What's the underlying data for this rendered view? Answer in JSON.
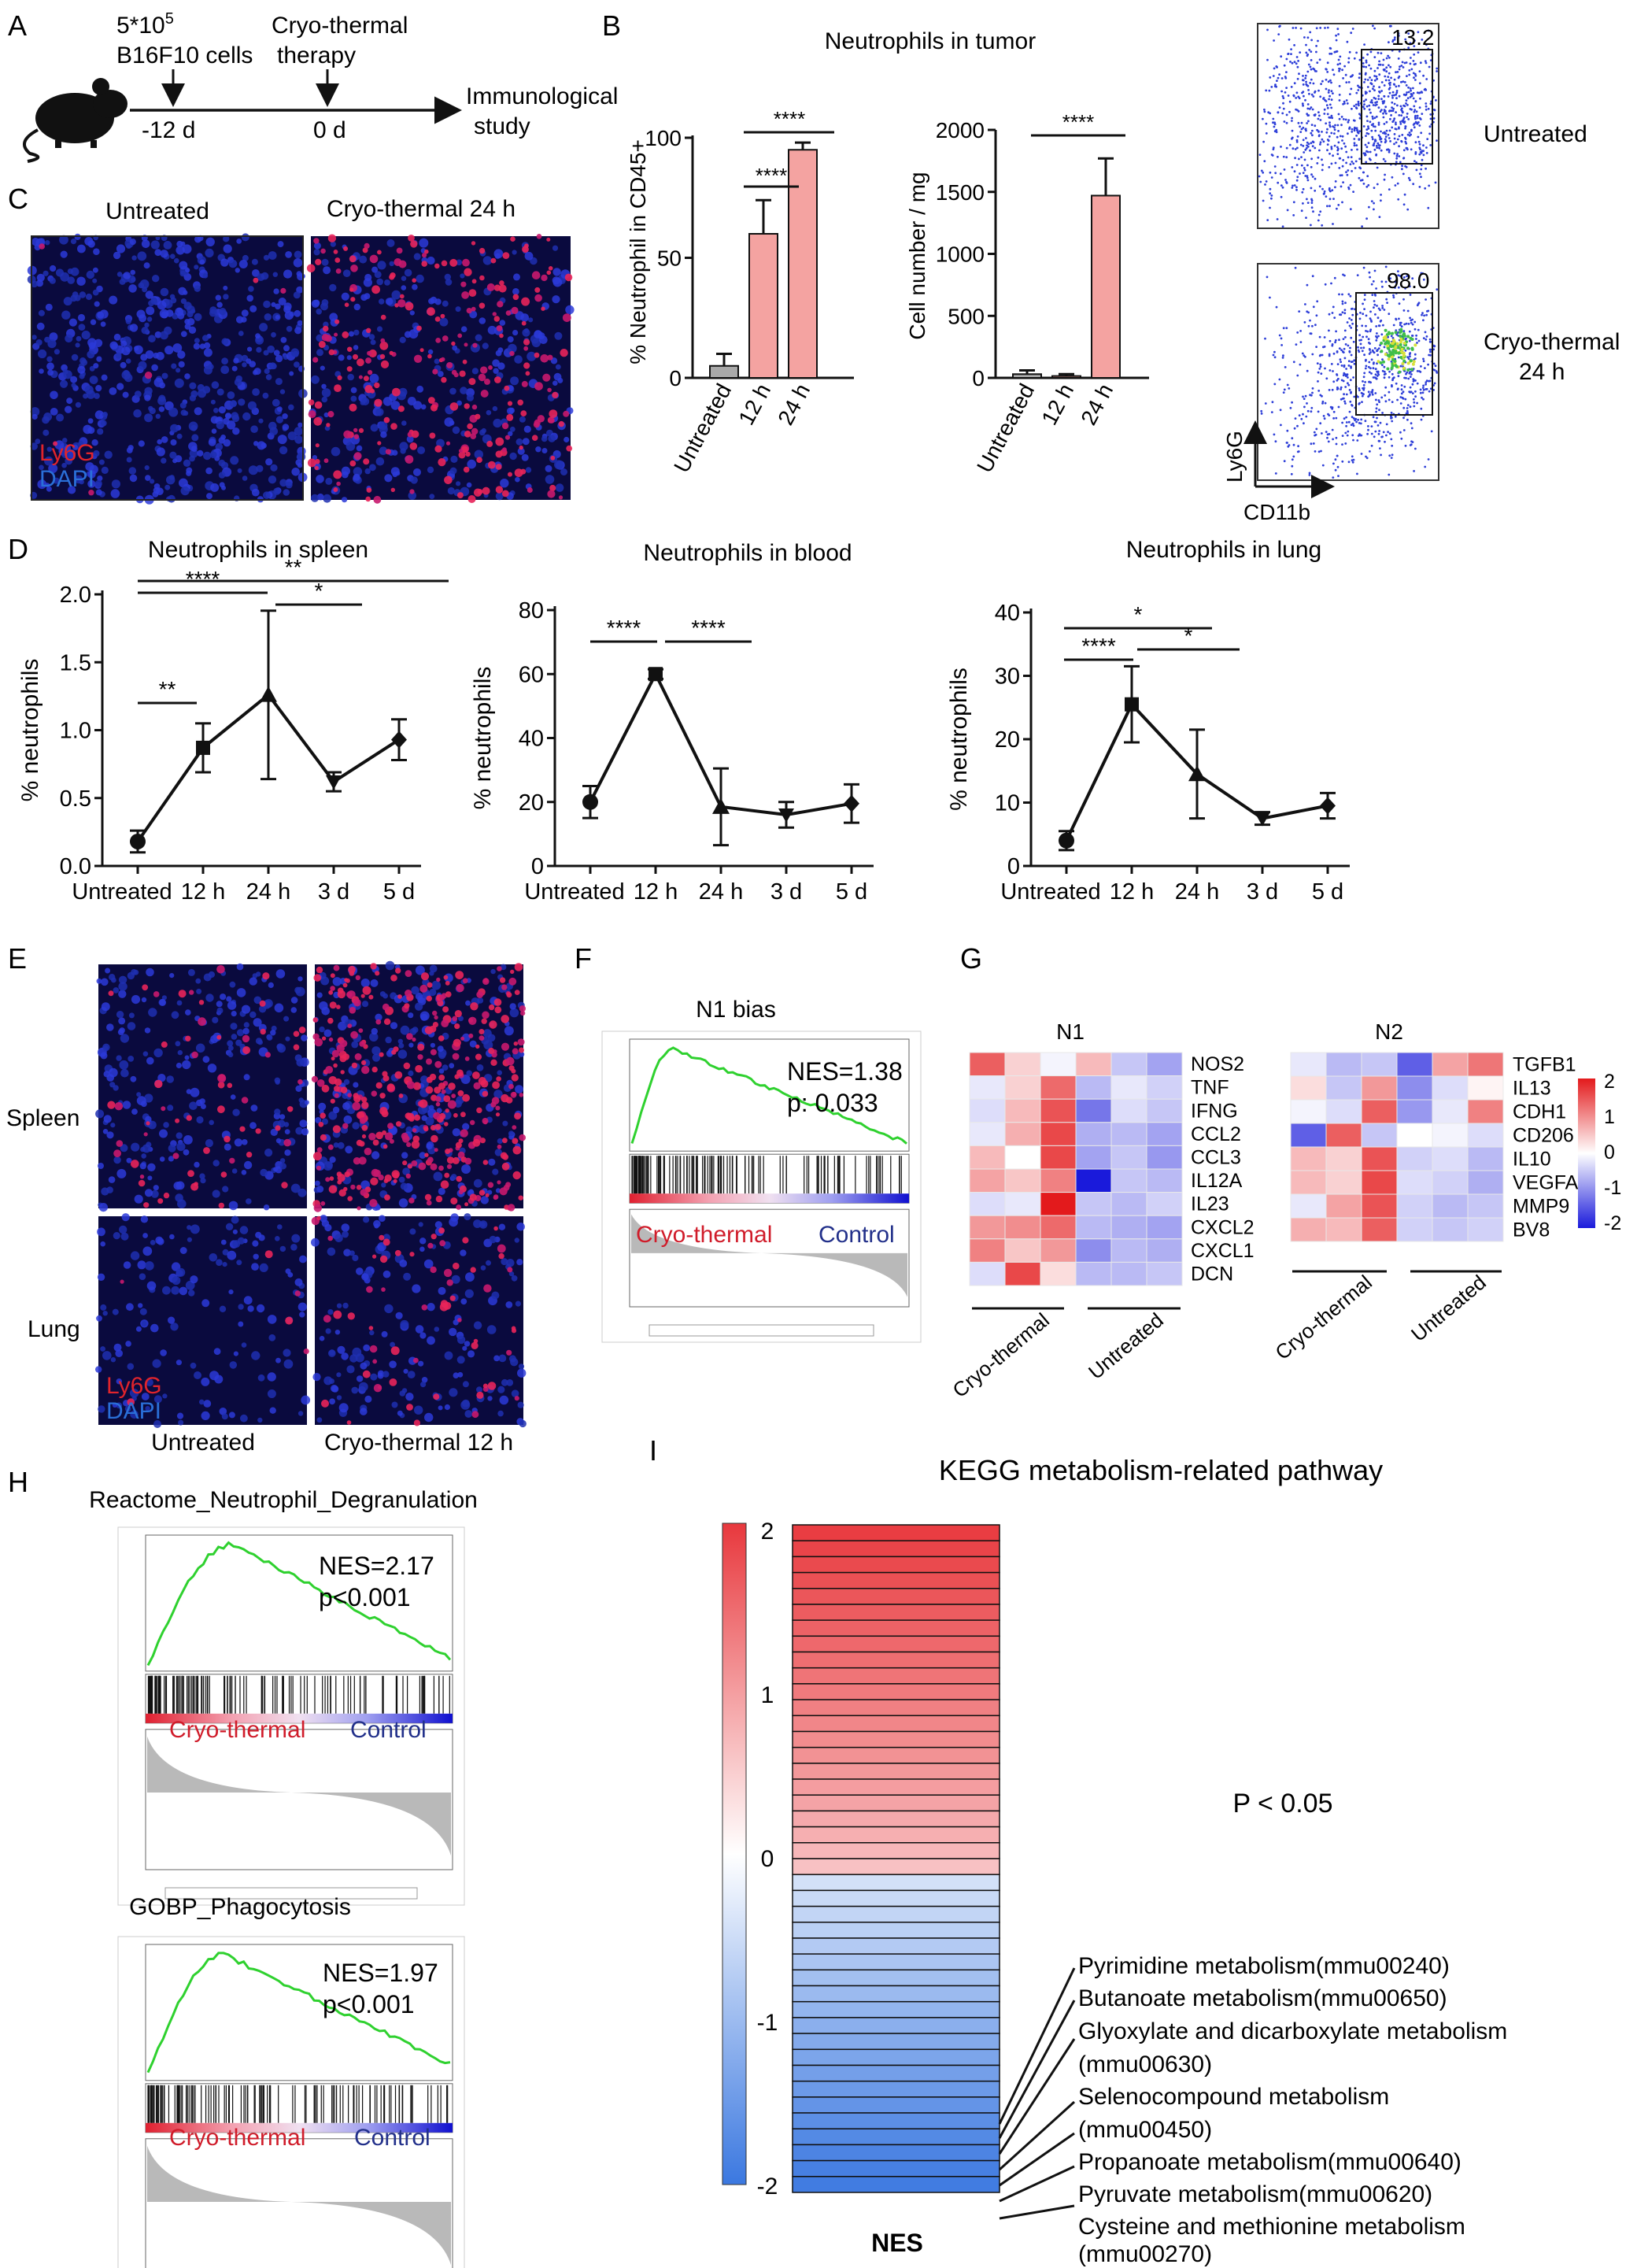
{
  "panels": {
    "A": "A",
    "B": "B",
    "C": "C",
    "D": "D",
    "E": "E",
    "F": "F",
    "G": "G",
    "H": "H",
    "I": "I"
  },
  "panelA": {
    "cells_line1": "5*10",
    "cells_exp": "5",
    "cells_line2": "B16F10 cells",
    "therapy_line1": "Cryo-thermal",
    "therapy_line2": "therapy",
    "day1": "-12 d",
    "day2": "0 d",
    "study_line1": "Immunological",
    "study_line2": "study"
  },
  "panelB": {
    "title": "Neutrophils in tumor",
    "tick_labels_x": [
      "Untreated",
      "12 h",
      "24 h"
    ],
    "pct_chart": {
      "ylabel": "% Neutrophil in CD45+",
      "yticks": [
        "0",
        "50",
        "100"
      ],
      "sig": [
        "****",
        "****"
      ]
    },
    "count_chart": {
      "ylabel": "Cell number / mg",
      "yticks": [
        "0",
        "500",
        "1000",
        "1500",
        "2000"
      ],
      "sig": [
        "****"
      ]
    },
    "flow": {
      "top_value": "13.2",
      "top_label": "Untreated",
      "bottom_value": "98.0",
      "bottom_label_1": "Cryo-thermal",
      "bottom_label_2": "24 h",
      "xaxis": "CD11b",
      "yaxis": "Ly6G"
    }
  },
  "panelC": {
    "left_title": "Untreated",
    "right_title": "Cryo-thermal 24 h",
    "legend_red": "Ly6G",
    "legend_blue": "DAPI"
  },
  "panelD": {
    "ylabel": "% neutrophils",
    "xticks": [
      "Untreated",
      "12 h",
      "24 h",
      "3 d",
      "5 d"
    ],
    "spleen": {
      "title": "Neutrophils in spleen",
      "yticks": [
        "0.0",
        "0.5",
        "1.0",
        "1.5",
        "2.0"
      ],
      "sig": [
        "**",
        "****",
        "*",
        "**"
      ]
    },
    "blood": {
      "title": "Neutrophils in blood",
      "yticks": [
        "0",
        "20",
        "40",
        "60",
        "80"
      ],
      "sig": [
        "****",
        "****"
      ]
    },
    "lung": {
      "title": "Neutrophils in lung",
      "yticks": [
        "0",
        "10",
        "20",
        "30",
        "40"
      ],
      "sig": [
        "****",
        "*",
        "*"
      ]
    }
  },
  "panelE": {
    "row1": "Spleen",
    "row2": "Lung",
    "col1": "Untreated",
    "col2": "Cryo-thermal 12 h",
    "legend_red": "Ly6G",
    "legend_blue": "DAPI"
  },
  "panelF": {
    "title": "N1 bias",
    "nes": "NES=1.38",
    "p": "p: 0.033",
    "left": "Cryo-thermal",
    "right": "Control"
  },
  "panelG": {
    "n1_title": "N1",
    "n2_title": "N2",
    "n1_genes": [
      "NOS2",
      "TNF",
      "IFNG",
      "CCL2",
      "CCL3",
      "IL12A",
      "IL23",
      "CXCL2",
      "CXCL1",
      "DCN"
    ],
    "n2_genes": [
      "TGFB1",
      "IL13",
      "CDH1",
      "CD206",
      "IL10",
      "VEGFA",
      "MMP9",
      "BV8"
    ],
    "group1": "Cryo-thermal",
    "group2": "Untreated",
    "scale": [
      "2",
      "1",
      "0",
      "-1",
      "-2"
    ]
  },
  "panelH": {
    "plot1": {
      "title": "Reactome_Neutrophil_Degranulation",
      "nes": "NES=2.17",
      "p": "p<0.001"
    },
    "plot2": {
      "title": "GOBP_Phagocytosis",
      "nes": "NES=1.97",
      "p": "p<0.001"
    },
    "left": "Cryo-thermal",
    "right": "Control"
  },
  "panelI": {
    "title": "KEGG metabolism-related pathway",
    "pvalue": "P < 0.05",
    "scale": [
      "2",
      "1",
      "0",
      "-1",
      "-2"
    ],
    "xlabel": "NES",
    "pathways": [
      "Pyrimidine metabolism(mmu00240)",
      "Butanoate metabolism(mmu00650)",
      "Glyoxylate and dicarboxylate metabolism",
      "(mmu00630)",
      "Selenocompound metabolism",
      "(mmu00450)",
      "Propanoate metabolism(mmu00640)",
      "Pyruvate metabolism(mmu00620)",
      "Cysteine and methionine metabolism",
      "(mmu00270)"
    ]
  },
  "chart_data": [
    {
      "type": "bar",
      "title": "Neutrophils in tumor",
      "ylabel": "% Neutrophil in CD45+",
      "categories": [
        "Untreated",
        "12 h",
        "24 h"
      ],
      "values": [
        5,
        60,
        95
      ],
      "errors": [
        5,
        14,
        3
      ],
      "ylim": [
        0,
        100
      ]
    },
    {
      "type": "bar",
      "ylabel": "Cell number / mg",
      "categories": [
        "Untreated",
        "12 h",
        "24 h"
      ],
      "values": [
        30,
        15,
        1470
      ],
      "errors": [
        30,
        15,
        300
      ],
      "ylim": [
        0,
        2000
      ]
    },
    {
      "type": "line",
      "title": "Neutrophils in spleen",
      "ylabel": "% neutrophils",
      "x": [
        "Untreated",
        "12 h",
        "24 h",
        "3 d",
        "5 d"
      ],
      "values": [
        0.18,
        0.87,
        1.26,
        0.62,
        0.93
      ],
      "errors": [
        0.08,
        0.18,
        0.62,
        0.07,
        0.15
      ],
      "ylim": [
        0,
        2
      ]
    },
    {
      "type": "line",
      "title": "Neutrophils in blood",
      "ylabel": "% neutrophils",
      "x": [
        "Untreated",
        "12 h",
        "24 h",
        "3 d",
        "5 d"
      ],
      "values": [
        20,
        60,
        18.5,
        16,
        19.5
      ],
      "errors": [
        5,
        1.5,
        12,
        4,
        6
      ],
      "ylim": [
        0,
        80
      ]
    },
    {
      "type": "line",
      "title": "Neutrophils in lung",
      "ylabel": "% neutrophils",
      "x": [
        "Untreated",
        "12 h",
        "24 h",
        "3 d",
        "5 d"
      ],
      "values": [
        4,
        25.5,
        14.5,
        7.5,
        9.5
      ],
      "errors": [
        1.5,
        6,
        7,
        1,
        2
      ],
      "ylim": [
        0,
        40
      ]
    },
    {
      "type": "heatmap",
      "title": "N1",
      "rows": [
        "NOS2",
        "TNF",
        "IFNG",
        "CCL2",
        "CCL3",
        "IL12A",
        "IL23",
        "CXCL2",
        "CXCL1",
        "DCN"
      ],
      "columns": 6,
      "values": [
        [
          1.4,
          0.4,
          -0.1,
          0.6,
          -0.5,
          -0.8
        ],
        [
          -0.2,
          0.4,
          1.3,
          -0.6,
          -0.2,
          -0.4
        ],
        [
          -0.3,
          0.6,
          1.5,
          -1.2,
          -0.3,
          -0.5
        ],
        [
          -0.2,
          0.7,
          1.6,
          -0.7,
          -0.6,
          -0.8
        ],
        [
          0.6,
          0.0,
          1.6,
          -0.8,
          -0.5,
          -0.9
        ],
        [
          0.8,
          0.5,
          1.1,
          -2.0,
          -0.5,
          -0.6
        ],
        [
          -0.3,
          -0.2,
          2.0,
          -0.5,
          -0.6,
          -0.4
        ],
        [
          0.9,
          1.0,
          1.3,
          -0.6,
          -0.7,
          -0.8
        ],
        [
          1.1,
          0.5,
          0.9,
          -1.0,
          -0.6,
          -0.7
        ],
        [
          -0.3,
          1.6,
          0.3,
          -0.6,
          -0.6,
          -0.5
        ]
      ]
    },
    {
      "type": "heatmap",
      "title": "N2",
      "rows": [
        "TGFB1",
        "IL13",
        "CDH1",
        "CD206",
        "IL10",
        "VEGFA",
        "MMP9",
        "BV8"
      ],
      "columns": 6,
      "values": [
        [
          -0.2,
          -0.6,
          -0.5,
          -1.4,
          0.8,
          1.2
        ],
        [
          0.3,
          -0.5,
          0.9,
          -1.0,
          -0.3,
          0.1
        ],
        [
          -0.1,
          -0.3,
          1.4,
          -0.9,
          -0.2,
          1.1
        ],
        [
          -1.4,
          1.4,
          -0.5,
          0.0,
          -0.1,
          -0.3
        ],
        [
          0.6,
          0.4,
          1.5,
          -0.4,
          -0.3,
          -0.6
        ],
        [
          0.6,
          0.4,
          1.6,
          -0.3,
          -0.4,
          -0.7
        ],
        [
          -0.2,
          0.8,
          1.5,
          -0.4,
          -0.6,
          -0.5
        ],
        [
          0.7,
          0.6,
          1.4,
          -0.4,
          -0.5,
          -0.4
        ]
      ]
    },
    {
      "type": "heatmap",
      "title": "KEGG metabolism-related pathway",
      "xlabel": "NES",
      "columns": 1,
      "values": [
        1.95,
        1.88,
        1.82,
        1.76,
        1.7,
        1.64,
        1.58,
        1.52,
        1.46,
        1.4,
        1.34,
        1.28,
        1.22,
        1.16,
        1.1,
        1.04,
        0.98,
        0.92,
        0.86,
        0.8,
        0.72,
        0.62,
        -0.45,
        -0.55,
        -0.62,
        -0.7,
        -0.78,
        -0.86,
        -0.94,
        -1.02,
        -1.1,
        -1.18,
        -1.26,
        -1.34,
        -1.42,
        -1.5,
        -1.58,
        -1.66,
        -1.74,
        -1.82,
        -1.88,
        -1.94
      ]
    }
  ]
}
